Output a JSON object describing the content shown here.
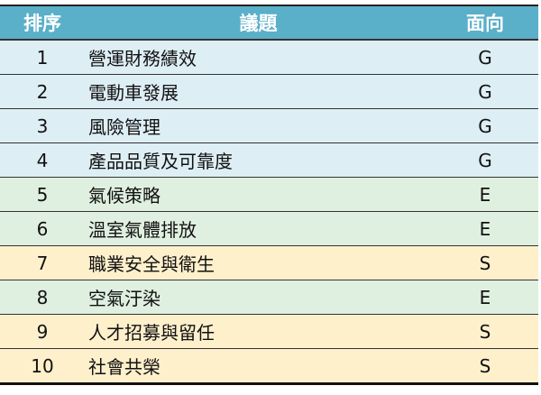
{
  "header": {
    "rank": "排序",
    "topic": "議題",
    "aspect": "面向"
  },
  "colors": {
    "header": "#5aafc9",
    "G": "#deeef5",
    "E": "#e0f0e0",
    "S": "#fff0cc"
  },
  "rows": [
    {
      "rank": "1",
      "topic": "營運財務績效",
      "aspect": "G"
    },
    {
      "rank": "2",
      "topic": "電動車發展",
      "aspect": "G"
    },
    {
      "rank": "3",
      "topic": "風險管理",
      "aspect": "G"
    },
    {
      "rank": "4",
      "topic": "產品品質及可靠度",
      "aspect": "G"
    },
    {
      "rank": "5",
      "topic": "氣候策略",
      "aspect": "E"
    },
    {
      "rank": "6",
      "topic": "溫室氣體排放",
      "aspect": "E"
    },
    {
      "rank": "7",
      "topic": "職業安全與衛生",
      "aspect": "S"
    },
    {
      "rank": "8",
      "topic": "空氣汙染",
      "aspect": "E"
    },
    {
      "rank": "9",
      "topic": "人才招募與留任",
      "aspect": "S"
    },
    {
      "rank": "10",
      "topic": "社會共榮",
      "aspect": "S"
    }
  ]
}
